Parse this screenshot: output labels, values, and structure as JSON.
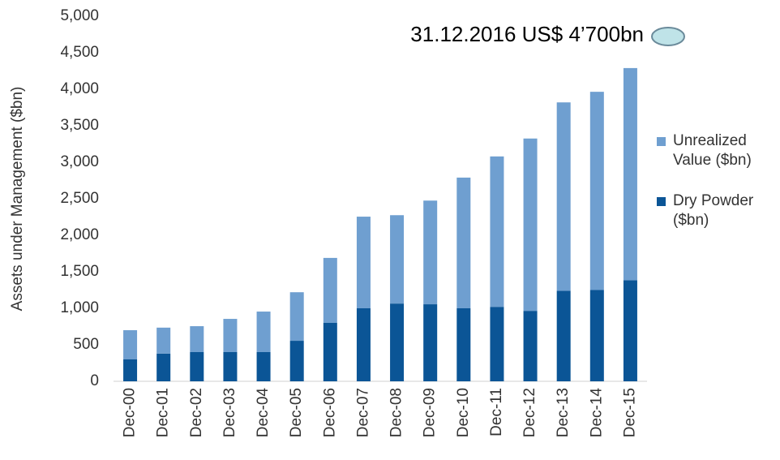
{
  "chart_data": {
    "type": "stacked_bar",
    "y_label": "Assets under Management ($bn)",
    "annotation": "31.12.2016 US$ 4’700bn",
    "categories": [
      "Dec-00",
      "Dec-01",
      "Dec-02",
      "Dec-03",
      "Dec-04",
      "Dec-05",
      "Dec-06",
      "Dec-07",
      "Dec-08",
      "Dec-09",
      "Dec-10",
      "Dec-11",
      "Dec-12",
      "Dec-13",
      "Dec-14",
      "Dec-15"
    ],
    "series": [
      {
        "name": "Dry Powder ($bn)",
        "color": "#0b5596",
        "values": [
          300,
          380,
          400,
          400,
          400,
          555,
          800,
          1000,
          1065,
          1055,
          1000,
          1020,
          965,
          1240,
          1250,
          1385
        ]
      },
      {
        "name": "Unrealized Value ($bn)",
        "color": "#6f9fd0",
        "values": [
          400,
          355,
          355,
          455,
          555,
          665,
          890,
          1255,
          1210,
          1420,
          1790,
          2060,
          2360,
          2580,
          2715,
          2905
        ]
      }
    ],
    "ylim": [
      0,
      5000
    ],
    "yticks": [
      0,
      500,
      {
        "value": 1000,
        "label": "1,000"
      },
      {
        "value": 1500,
        "label": "1,500"
      },
      {
        "value": 2000,
        "label": "2,000"
      },
      {
        "value": 2500,
        "label": "2,500"
      },
      {
        "value": 3000,
        "label": "3,000"
      },
      {
        "value": 3500,
        "label": "3,500"
      },
      {
        "value": 4000,
        "label": "4,000"
      },
      {
        "value": 4500,
        "label": "4,500"
      },
      {
        "value": 5000,
        "label": "5,000"
      }
    ],
    "grid": false
  }
}
